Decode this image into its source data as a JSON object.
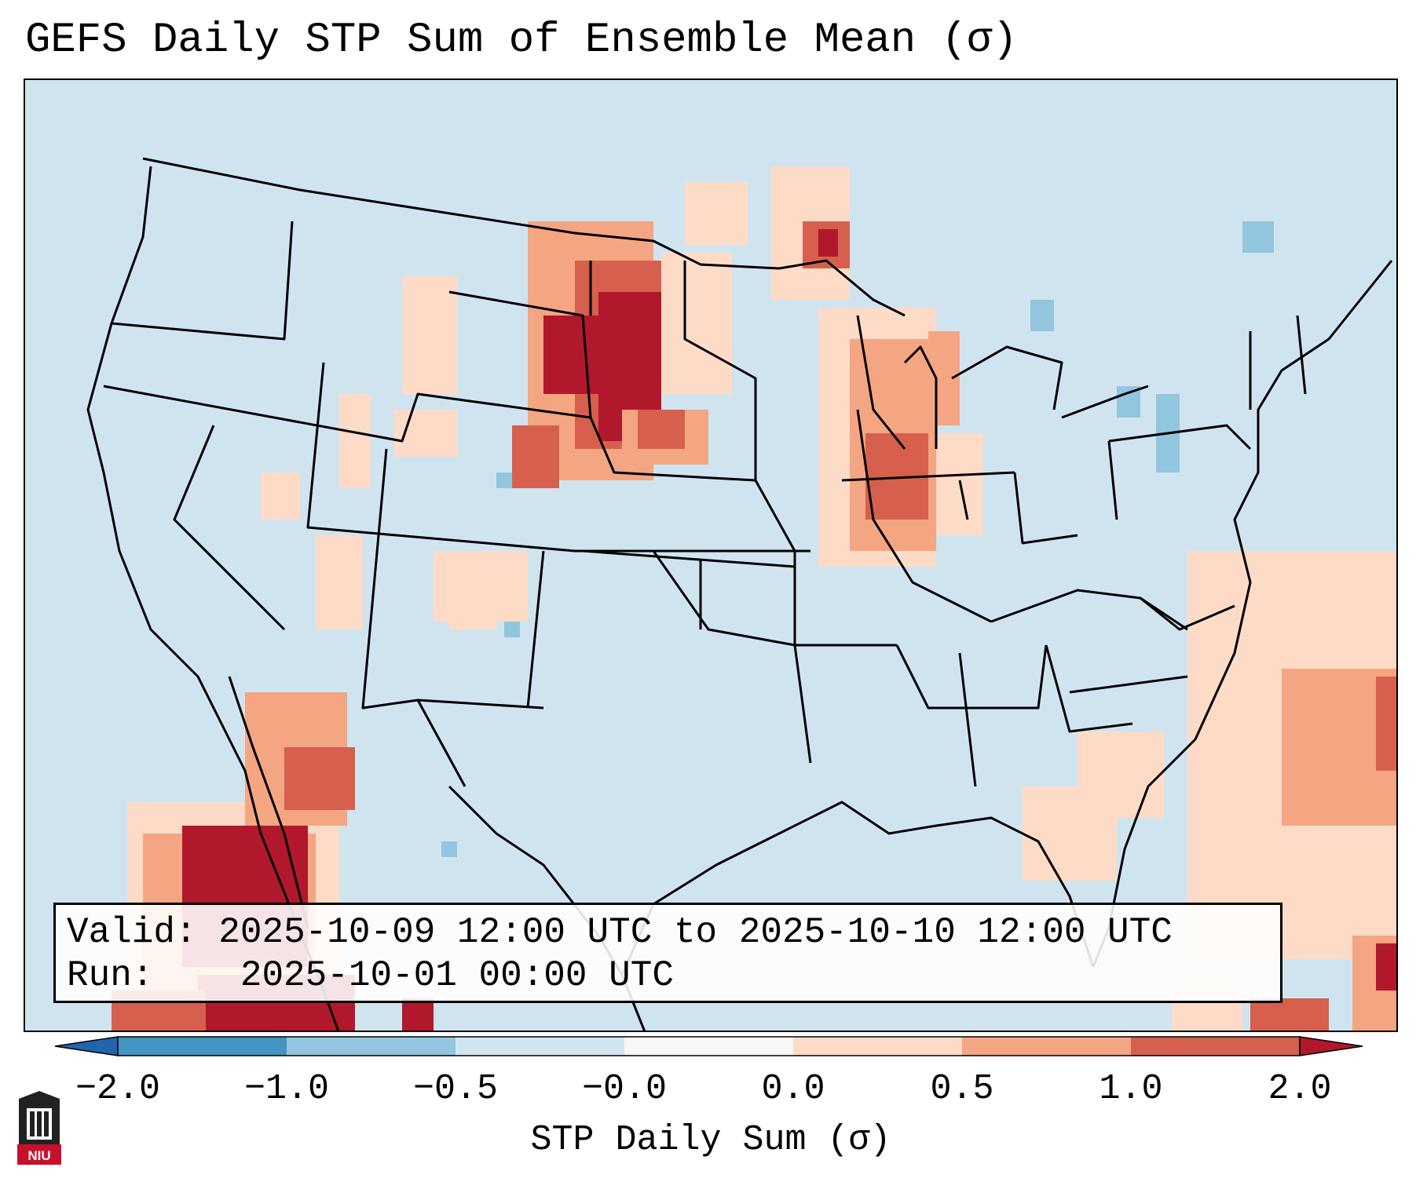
{
  "title": "GEFS Daily STP Sum of Ensemble Mean (σ)",
  "info": {
    "valid_label": "Valid:",
    "valid_value": "2025-10-09 12:00 UTC to 2025-10-10 12:00 UTC",
    "run_label": "Run:",
    "run_value": "2025-10-01 00:00 UTC"
  },
  "colorbar": {
    "label": "STP Daily Sum (σ)",
    "ticks": [
      "−2.0",
      "−1.0",
      "−0.5",
      "−0.0",
      "0.0",
      "0.5",
      "1.0",
      "2.0"
    ],
    "bins": [
      {
        "range": "-2.0 to -1.0",
        "color": "#4393c3"
      },
      {
        "range": "-1.0 to -0.5",
        "color": "#92c5de"
      },
      {
        "range": "-0.5 to -0.0",
        "color": "#d1e5f0"
      },
      {
        "range": "-0.0 to 0.0",
        "color": "#f7f7f7"
      },
      {
        "range": "0.0 to 0.5",
        "color": "#fddbc7"
      },
      {
        "range": "0.5 to 1.0",
        "color": "#f4a582"
      },
      {
        "range": "1.0 to 2.0",
        "color": "#d6604d"
      }
    ],
    "under_color": "#2166ac",
    "over_color": "#b2182b"
  },
  "background_color": "#d1e5f0",
  "logo": {
    "text": "NIU",
    "icon": "niu-shield-icon",
    "color": "#c8102e"
  }
}
